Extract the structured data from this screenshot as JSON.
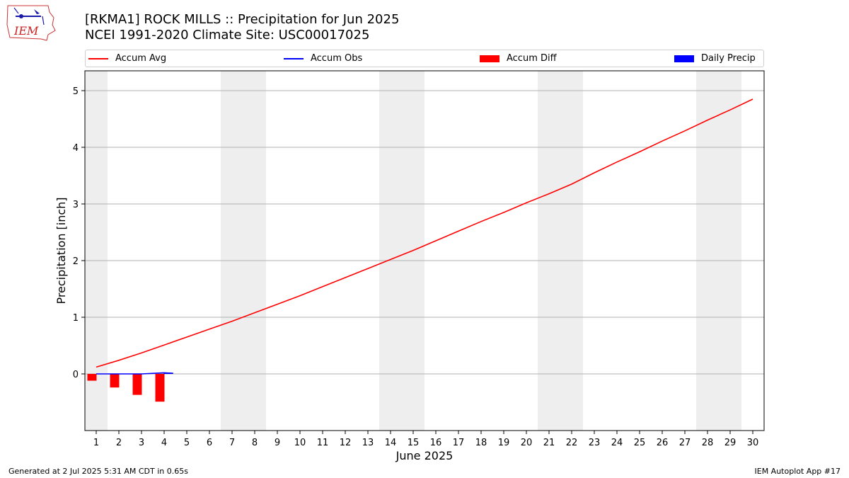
{
  "header": {
    "title_line1": "[RKMA1] ROCK MILLS :: Precipitation for Jun 2025",
    "title_line2": "NCEI 1991-2020 Climate Site: USC00017025",
    "logo_text": "IEM"
  },
  "footer": {
    "generated": "Generated at 2 Jul 2025 5:31 AM CDT in 0.65s",
    "app": "IEM Autoplot App #17"
  },
  "legend": {
    "items": [
      {
        "label": "Accum Avg",
        "kind": "line",
        "color": "#ff0000"
      },
      {
        "label": "Accum Obs",
        "kind": "line",
        "color": "#0000ff"
      },
      {
        "label": "Accum Diff",
        "kind": "patch",
        "color": "#ff0000"
      },
      {
        "label": "Daily Precip",
        "kind": "patch",
        "color": "#0000ff"
      }
    ]
  },
  "colors": {
    "avg": "#ff0000",
    "obs": "#0000ff",
    "diff": "#ff0000",
    "daily": "#0000ff",
    "weekend_band": "#eeeeee",
    "grid": "#b0b0b0"
  },
  "chart_data": {
    "type": "line",
    "title": "[RKMA1] ROCK MILLS :: Precipitation for Jun 2025",
    "subtitle": "NCEI 1991-2020 Climate Site: USC00017025",
    "xlabel": "June 2025",
    "ylabel": "Precipitation [inch]",
    "x": [
      1,
      2,
      3,
      4,
      5,
      6,
      7,
      8,
      9,
      10,
      11,
      12,
      13,
      14,
      15,
      16,
      17,
      18,
      19,
      20,
      21,
      22,
      23,
      24,
      25,
      26,
      27,
      28,
      29,
      30
    ],
    "xlim": [
      0.5,
      30.5
    ],
    "ylim": [
      -1.0,
      5.35
    ],
    "yticks": [
      0,
      1,
      2,
      3,
      4,
      5
    ],
    "grid": "horizontal",
    "legend_position": "top",
    "weekend_bands": [
      [
        0.5,
        1.5
      ],
      [
        6.5,
        8.5
      ],
      [
        13.5,
        15.5
      ],
      [
        20.5,
        22.5
      ],
      [
        27.5,
        29.5
      ]
    ],
    "series": [
      {
        "name": "Accum Avg",
        "type": "line",
        "x": [
          1,
          2,
          3,
          4,
          5,
          6,
          7,
          8,
          9,
          10,
          11,
          12,
          13,
          14,
          15,
          16,
          17,
          18,
          19,
          20,
          21,
          22,
          23,
          24,
          25,
          26,
          27,
          28,
          29,
          30
        ],
        "values": [
          0.12,
          0.24,
          0.37,
          0.51,
          0.65,
          0.79,
          0.93,
          1.08,
          1.23,
          1.38,
          1.54,
          1.7,
          1.86,
          2.02,
          2.18,
          2.35,
          2.52,
          2.69,
          2.85,
          3.02,
          3.18,
          3.35,
          3.55,
          3.74,
          3.92,
          4.11,
          4.29,
          4.48,
          4.66,
          4.85
        ]
      },
      {
        "name": "Accum Obs",
        "type": "line",
        "x": [
          1,
          2,
          3,
          4,
          4.4
        ],
        "values": [
          0.0,
          0.0,
          0.0,
          0.02,
          0.01
        ]
      },
      {
        "name": "Accum Diff",
        "type": "bar",
        "x": [
          1,
          2,
          3,
          4
        ],
        "values": [
          -0.12,
          -0.24,
          -0.37,
          -0.49
        ]
      },
      {
        "name": "Daily Precip",
        "type": "bar",
        "x": [
          1,
          2,
          3,
          4
        ],
        "values": [
          0,
          0,
          0,
          0.02
        ]
      }
    ]
  }
}
